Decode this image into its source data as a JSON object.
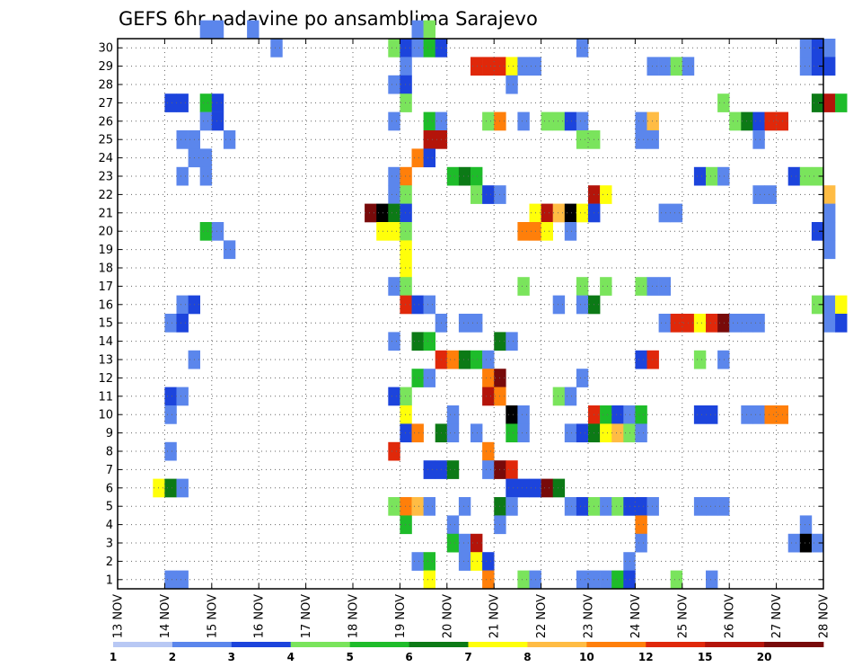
{
  "chart_data": {
    "type": "heatmap",
    "title": "GEFS 6hr padavine po ansamblima Sarajevo",
    "xlabel": "",
    "ylabel": "",
    "x_tick_labels": [
      "13 NOV",
      "14 NOV",
      "15 NOV",
      "16 NOV",
      "17 NOV",
      "18 NOV",
      "19 NOV",
      "20 NOV",
      "21 NOV",
      "22 NOV",
      "23 NOV",
      "24 NOV",
      "25 NOV",
      "26 NOV",
      "27 NOV",
      "28 NOV"
    ],
    "y_tick_labels": [
      "1",
      "2",
      "3",
      "4",
      "5",
      "6",
      "7",
      "8",
      "9",
      "10",
      "11",
      "12",
      "13",
      "14",
      "15",
      "16",
      "17",
      "18",
      "19",
      "20",
      "21",
      "22",
      "23",
      "24",
      "25",
      "26",
      "27",
      "28",
      "29",
      "30"
    ],
    "x_range_days": [
      13,
      28
    ],
    "y_range": [
      0,
      30
    ],
    "steps_per_day": 4,
    "grid": true,
    "colorbar": {
      "labels": [
        "1",
        "2",
        "3",
        "4",
        "5",
        "6",
        "7",
        "8",
        "10",
        "12",
        "15",
        "20"
      ],
      "colors": [
        "#b8c8f4",
        "#5b86ec",
        "#1c44dc",
        "#7ae45c",
        "#1ebc2a",
        "#0c7a16",
        "#ffff0a",
        "#ffbc44",
        "#ff7f0a",
        "#e0280a",
        "#b4140a",
        "#780a0a"
      ]
    },
    "cells": [
      [
        30,
        19.25,
        1
      ],
      [
        30,
        19.5,
        3
      ],
      [
        30,
        14.75,
        1
      ],
      [
        30,
        15,
        1
      ],
      [
        30,
        15.75,
        1
      ],
      [
        29,
        16.25,
        1
      ],
      [
        29,
        18.75,
        3
      ],
      [
        29,
        19,
        2
      ],
      [
        29,
        19.25,
        1
      ],
      [
        29,
        19.5,
        4
      ],
      [
        29,
        19.75,
        2
      ],
      [
        29,
        22.75,
        1
      ],
      [
        29,
        27.5,
        1
      ],
      [
        29,
        27.75,
        2
      ],
      [
        29,
        28,
        1
      ],
      [
        28,
        19,
        1
      ],
      [
        28,
        20.5,
        9
      ],
      [
        28,
        20.75,
        9
      ],
      [
        28,
        21,
        9
      ],
      [
        28,
        21.25,
        6
      ],
      [
        28,
        21.5,
        1
      ],
      [
        28,
        21.75,
        1
      ],
      [
        28,
        24.25,
        1
      ],
      [
        28,
        24.5,
        1
      ],
      [
        28,
        24.75,
        3
      ],
      [
        28,
        25,
        1
      ],
      [
        28,
        27.5,
        1
      ],
      [
        28,
        27.75,
        2
      ],
      [
        28,
        28,
        2
      ],
      [
        27,
        18.75,
        1
      ],
      [
        27,
        19,
        2
      ],
      [
        27,
        21.25,
        1
      ],
      [
        26,
        14,
        2
      ],
      [
        26,
        14.25,
        2
      ],
      [
        26,
        14.75,
        4
      ],
      [
        26,
        15,
        2
      ],
      [
        26,
        19,
        3
      ],
      [
        26,
        25.75,
        3
      ],
      [
        26,
        27.75,
        5
      ],
      [
        26,
        28,
        10
      ],
      [
        26,
        28.25,
        4
      ],
      [
        25,
        14.75,
        1
      ],
      [
        25,
        15,
        2
      ],
      [
        25,
        18.75,
        1
      ],
      [
        25,
        19.5,
        4
      ],
      [
        25,
        19.75,
        1
      ],
      [
        25,
        20.75,
        3
      ],
      [
        25,
        21,
        8
      ],
      [
        25,
        21.5,
        1
      ],
      [
        25,
        22,
        3
      ],
      [
        25,
        22.25,
        3
      ],
      [
        25,
        22.5,
        2
      ],
      [
        25,
        22.75,
        1
      ],
      [
        25,
        24,
        1
      ],
      [
        25,
        24.25,
        7
      ],
      [
        25,
        26,
        3
      ],
      [
        25,
        26.25,
        5
      ],
      [
        25,
        26.5,
        2
      ],
      [
        25,
        26.75,
        9
      ],
      [
        25,
        27,
        9
      ],
      [
        24,
        14.25,
        1
      ],
      [
        24,
        14.5,
        1
      ],
      [
        24,
        15.25,
        1
      ],
      [
        24,
        19.5,
        10
      ],
      [
        24,
        19.75,
        10
      ],
      [
        24,
        22.75,
        3
      ],
      [
        24,
        23,
        3
      ],
      [
        24,
        24,
        1
      ],
      [
        24,
        24.25,
        1
      ],
      [
        24,
        26.5,
        1
      ],
      [
        23,
        14.5,
        1
      ],
      [
        23,
        14.75,
        1
      ],
      [
        23,
        19.25,
        8
      ],
      [
        23,
        19.5,
        2
      ],
      [
        22,
        14.25,
        1
      ],
      [
        22,
        14.75,
        1
      ],
      [
        22,
        18.75,
        1
      ],
      [
        22,
        19,
        8
      ],
      [
        22,
        20,
        4
      ],
      [
        22,
        20.25,
        5
      ],
      [
        22,
        20.5,
        4
      ],
      [
        22,
        25.25,
        2
      ],
      [
        22,
        25.5,
        3
      ],
      [
        22,
        25.75,
        1
      ],
      [
        22,
        27.25,
        2
      ],
      [
        22,
        27.5,
        3
      ],
      [
        22,
        27.75,
        3
      ],
      [
        21,
        18.75,
        1
      ],
      [
        21,
        19,
        3
      ],
      [
        21,
        20.5,
        3
      ],
      [
        21,
        20.75,
        2
      ],
      [
        21,
        21,
        1
      ],
      [
        21,
        23,
        10
      ],
      [
        21,
        23.25,
        6
      ],
      [
        21,
        26.5,
        1
      ],
      [
        21,
        26.75,
        1
      ],
      [
        21,
        28,
        7
      ],
      [
        20,
        18.25,
        11
      ],
      [
        20,
        18.5,
        12
      ],
      [
        20,
        18.75,
        5
      ],
      [
        20,
        19,
        2
      ],
      [
        20,
        21.75,
        6
      ],
      [
        20,
        22,
        10
      ],
      [
        20,
        22.25,
        7
      ],
      [
        20,
        22.5,
        12
      ],
      [
        20,
        22.75,
        6
      ],
      [
        20,
        23,
        2
      ],
      [
        20,
        24.5,
        1
      ],
      [
        20,
        24.75,
        1
      ],
      [
        20,
        28,
        1
      ],
      [
        19,
        14.75,
        4
      ],
      [
        19,
        15,
        1
      ],
      [
        19,
        18.5,
        6
      ],
      [
        19,
        18.75,
        6
      ],
      [
        19,
        19,
        3
      ],
      [
        19,
        21.5,
        8
      ],
      [
        19,
        21.75,
        8
      ],
      [
        19,
        22,
        6
      ],
      [
        19,
        22.5,
        1
      ],
      [
        19,
        27.75,
        2
      ],
      [
        19,
        28,
        1
      ],
      [
        18,
        19,
        6
      ],
      [
        18,
        15.25,
        1
      ],
      [
        18,
        28,
        1
      ],
      [
        17,
        19,
        6
      ],
      [
        16,
        18.75,
        1
      ],
      [
        16,
        19,
        3
      ],
      [
        16,
        21.5,
        3
      ],
      [
        16,
        22.75,
        3
      ],
      [
        16,
        23.25,
        3
      ],
      [
        16,
        24,
        3
      ],
      [
        16,
        24.25,
        1
      ],
      [
        16,
        24.5,
        1
      ],
      [
        15,
        14.25,
        1
      ],
      [
        15,
        14.5,
        2
      ],
      [
        15,
        19,
        9
      ],
      [
        15,
        19.25,
        2
      ],
      [
        15,
        19.5,
        1
      ],
      [
        15,
        22.25,
        1
      ],
      [
        15,
        22.75,
        1
      ],
      [
        15,
        23,
        5
      ],
      [
        15,
        27.75,
        3
      ],
      [
        15,
        28,
        1
      ],
      [
        15,
        28.25,
        6
      ],
      [
        14,
        14,
        1
      ],
      [
        14,
        14.25,
        2
      ],
      [
        14,
        19.75,
        1
      ],
      [
        14,
        20.25,
        1
      ],
      [
        14,
        20.5,
        1
      ],
      [
        14,
        24.5,
        1
      ],
      [
        14,
        24.75,
        9
      ],
      [
        14,
        25,
        9
      ],
      [
        14,
        25.25,
        6
      ],
      [
        14,
        25.5,
        9
      ],
      [
        14,
        25.75,
        11
      ],
      [
        14,
        26,
        1
      ],
      [
        14,
        26.25,
        1
      ],
      [
        14,
        26.5,
        1
      ],
      [
        14,
        28,
        1
      ],
      [
        14,
        28.25,
        2
      ],
      [
        13,
        18.75,
        1
      ],
      [
        13,
        19.25,
        5
      ],
      [
        13,
        19.5,
        4
      ],
      [
        13,
        21,
        5
      ],
      [
        13,
        21.25,
        1
      ],
      [
        12,
        14.5,
        1
      ],
      [
        12,
        19.75,
        9
      ],
      [
        12,
        20,
        8
      ],
      [
        12,
        20.25,
        5
      ],
      [
        12,
        20.5,
        4
      ],
      [
        12,
        20.75,
        1
      ],
      [
        12,
        24,
        2
      ],
      [
        12,
        24.25,
        9
      ],
      [
        12,
        25.25,
        3
      ],
      [
        12,
        25.75,
        1
      ],
      [
        11,
        19.25,
        4
      ],
      [
        11,
        19.5,
        1
      ],
      [
        11,
        20.75,
        8
      ],
      [
        11,
        21,
        11
      ],
      [
        11,
        22.75,
        1
      ],
      [
        10,
        14,
        2
      ],
      [
        10,
        14.25,
        1
      ],
      [
        10,
        18.75,
        2
      ],
      [
        10,
        19,
        3
      ],
      [
        10,
        20.75,
        10
      ],
      [
        10,
        21,
        8
      ],
      [
        10,
        22.25,
        3
      ],
      [
        10,
        22.5,
        1
      ],
      [
        9,
        14,
        1
      ],
      [
        9,
        19,
        6
      ],
      [
        9,
        20,
        1
      ],
      [
        9,
        21.25,
        12
      ],
      [
        9,
        21.5,
        1
      ],
      [
        9,
        23,
        9
      ],
      [
        9,
        23.25,
        4
      ],
      [
        9,
        23.5,
        2
      ],
      [
        9,
        23.75,
        1
      ],
      [
        9,
        24,
        4
      ],
      [
        9,
        25.25,
        2
      ],
      [
        9,
        25.5,
        2
      ],
      [
        9,
        26.25,
        1
      ],
      [
        9,
        26.5,
        1
      ],
      [
        9,
        26.75,
        8
      ],
      [
        9,
        27,
        8
      ],
      [
        8,
        19,
        2
      ],
      [
        8,
        19.25,
        8
      ],
      [
        8,
        19.75,
        5
      ],
      [
        8,
        20,
        1
      ],
      [
        8,
        20.5,
        1
      ],
      [
        8,
        21.25,
        4
      ],
      [
        8,
        21.5,
        1
      ],
      [
        8,
        22.5,
        1
      ],
      [
        8,
        22.75,
        2
      ],
      [
        8,
        23,
        5
      ],
      [
        8,
        23.25,
        6
      ],
      [
        8,
        23.5,
        7
      ],
      [
        8,
        23.75,
        3
      ],
      [
        8,
        24,
        1
      ],
      [
        7,
        14,
        1
      ],
      [
        7,
        18.75,
        9
      ],
      [
        7,
        20.75,
        8
      ],
      [
        6,
        19.5,
        2
      ],
      [
        6,
        19.75,
        2
      ],
      [
        6,
        20,
        5
      ],
      [
        6,
        20.75,
        1
      ],
      [
        6,
        21,
        11
      ],
      [
        6,
        21.25,
        9
      ],
      [
        5,
        13.75,
        6
      ],
      [
        5,
        14,
        5
      ],
      [
        5,
        14.25,
        1
      ],
      [
        5,
        21.25,
        2
      ],
      [
        5,
        21.5,
        2
      ],
      [
        5,
        21.75,
        2
      ],
      [
        5,
        22,
        11
      ],
      [
        5,
        22.25,
        5
      ],
      [
        4,
        18.75,
        3
      ],
      [
        4,
        19,
        8
      ],
      [
        4,
        19.25,
        7
      ],
      [
        4,
        19.5,
        1
      ],
      [
        4,
        20.25,
        1
      ],
      [
        4,
        21,
        5
      ],
      [
        4,
        21.25,
        1
      ],
      [
        4,
        22.5,
        1
      ],
      [
        4,
        22.75,
        2
      ],
      [
        4,
        23,
        3
      ],
      [
        4,
        23.25,
        1
      ],
      [
        4,
        23.5,
        3
      ],
      [
        4,
        23.75,
        2
      ],
      [
        4,
        24,
        2
      ],
      [
        4,
        24.25,
        1
      ],
      [
        4,
        25.25,
        1
      ],
      [
        4,
        25.5,
        1
      ],
      [
        4,
        25.75,
        1
      ],
      [
        3,
        19,
        4
      ],
      [
        3,
        20,
        1
      ],
      [
        3,
        21,
        1
      ],
      [
        3,
        24,
        8
      ],
      [
        3,
        27.5,
        1
      ],
      [
        2,
        20,
        4
      ],
      [
        2,
        20.25,
        1
      ],
      [
        2,
        20.5,
        10
      ],
      [
        2,
        24,
        1
      ],
      [
        2,
        27.25,
        1
      ],
      [
        2,
        27.5,
        12
      ],
      [
        2,
        27.75,
        1
      ],
      [
        1,
        19.25,
        1
      ],
      [
        1,
        19.5,
        4
      ],
      [
        1,
        20.25,
        1
      ],
      [
        1,
        20.5,
        6
      ],
      [
        1,
        20.75,
        2
      ],
      [
        1,
        23.75,
        1
      ],
      [
        0,
        14,
        1
      ],
      [
        0,
        14.25,
        1
      ],
      [
        0,
        19.5,
        6
      ],
      [
        0,
        20.75,
        8
      ],
      [
        0,
        21.5,
        3
      ],
      [
        0,
        21.75,
        1
      ],
      [
        0,
        22.75,
        1
      ],
      [
        0,
        23,
        1
      ],
      [
        0,
        23.25,
        1
      ],
      [
        0,
        23.5,
        4
      ],
      [
        0,
        23.75,
        2
      ],
      [
        0,
        24.75,
        3
      ],
      [
        0,
        25.5,
        1
      ]
    ]
  }
}
